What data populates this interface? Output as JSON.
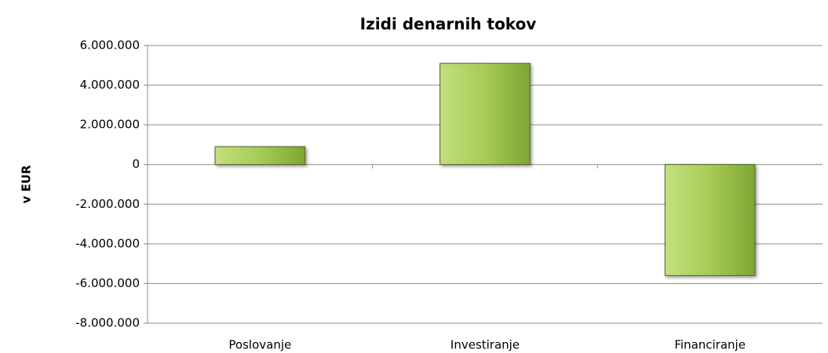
{
  "chart_data": {
    "type": "bar",
    "title": "Izidi denarnih tokov",
    "y_label": "v EUR",
    "categories": [
      "Poslovanje",
      "Investiranje",
      "Financiranje"
    ],
    "values": [
      900000,
      5100000,
      -5600000
    ],
    "color": "#9bbb59",
    "ylim": [
      -8000000,
      6000000
    ],
    "yticks": [
      {
        "value": -8000000,
        "label": "-8.000.000"
      },
      {
        "value": -6000000,
        "label": "-6.000.000"
      },
      {
        "value": -4000000,
        "label": "-4.000.000"
      },
      {
        "value": -2000000,
        "label": "-2.000.000"
      },
      0,
      {
        "value": 2000000,
        "label": "2.000.000"
      },
      {
        "value": 4000000,
        "label": "4.000.000"
      },
      {
        "value": 6000000,
        "label": "6.000.000"
      }
    ],
    "grid": true
  }
}
